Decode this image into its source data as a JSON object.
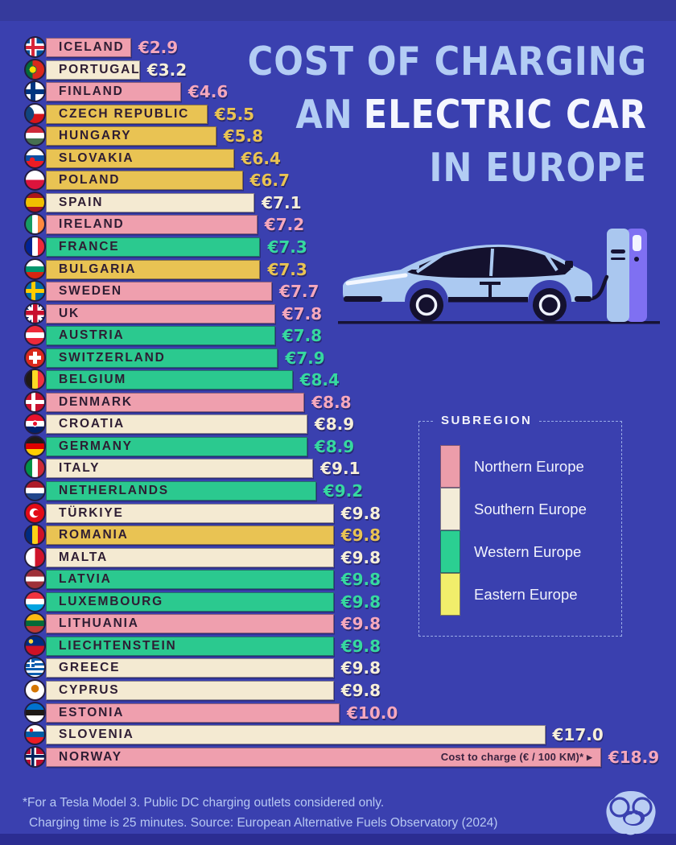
{
  "title": {
    "line1": "COST OF CHARGING",
    "line2_prefix": "AN",
    "line2_emphasis": "ELECTRIC CAR",
    "line3": "IN EUROPE"
  },
  "chart_data": {
    "type": "bar",
    "orientation": "horizontal",
    "title": "Cost of Charging an Electric Car in Europe",
    "unit": "EUR per 100 km",
    "value_label_prefix": "€",
    "axis_note": "Cost to charge (€ / 100 KM)* ▸",
    "x_max": 18.9,
    "rows": [
      {
        "country": "Iceland",
        "value": 2.9,
        "subregion": "Northern Europe",
        "flag": "iceland-flag-icon"
      },
      {
        "country": "Portugal",
        "value": 3.2,
        "subregion": "Southern Europe",
        "flag": "portugal-flag-icon"
      },
      {
        "country": "Finland",
        "value": 4.6,
        "subregion": "Northern Europe",
        "flag": "finland-flag-icon"
      },
      {
        "country": "Czech Republic",
        "value": 5.5,
        "subregion": "Eastern Europe",
        "flag": "czech-republic-flag-icon"
      },
      {
        "country": "Hungary",
        "value": 5.8,
        "subregion": "Eastern Europe",
        "flag": "hungary-flag-icon"
      },
      {
        "country": "Slovakia",
        "value": 6.4,
        "subregion": "Eastern Europe",
        "flag": "slovakia-flag-icon"
      },
      {
        "country": "Poland",
        "value": 6.7,
        "subregion": "Eastern Europe",
        "flag": "poland-flag-icon"
      },
      {
        "country": "Spain",
        "value": 7.1,
        "subregion": "Southern Europe",
        "flag": "spain-flag-icon"
      },
      {
        "country": "Ireland",
        "value": 7.2,
        "subregion": "Northern Europe",
        "flag": "ireland-flag-icon"
      },
      {
        "country": "France",
        "value": 7.3,
        "subregion": "Western Europe",
        "flag": "france-flag-icon"
      },
      {
        "country": "Bulgaria",
        "value": 7.3,
        "subregion": "Eastern Europe",
        "flag": "bulgaria-flag-icon"
      },
      {
        "country": "Sweden",
        "value": 7.7,
        "subregion": "Northern Europe",
        "flag": "sweden-flag-icon"
      },
      {
        "country": "UK",
        "value": 7.8,
        "subregion": "Northern Europe",
        "flag": "uk-flag-icon"
      },
      {
        "country": "Austria",
        "value": 7.8,
        "subregion": "Western Europe",
        "flag": "austria-flag-icon"
      },
      {
        "country": "Switzerland",
        "value": 7.9,
        "subregion": "Western Europe",
        "flag": "switzerland-flag-icon"
      },
      {
        "country": "Belgium",
        "value": 8.4,
        "subregion": "Western Europe",
        "flag": "belgium-flag-icon"
      },
      {
        "country": "Denmark",
        "value": 8.8,
        "subregion": "Northern Europe",
        "flag": "denmark-flag-icon"
      },
      {
        "country": "Croatia",
        "value": 8.9,
        "subregion": "Southern Europe",
        "flag": "croatia-flag-icon"
      },
      {
        "country": "Germany",
        "value": 8.9,
        "subregion": "Western Europe",
        "flag": "germany-flag-icon"
      },
      {
        "country": "Italy",
        "value": 9.1,
        "subregion": "Southern Europe",
        "flag": "italy-flag-icon"
      },
      {
        "country": "Netherlands",
        "value": 9.2,
        "subregion": "Western Europe",
        "flag": "netherlands-flag-icon"
      },
      {
        "country": "Türkiye",
        "value": 9.8,
        "subregion": "Southern Europe",
        "flag": "turkiye-flag-icon"
      },
      {
        "country": "Romania",
        "value": 9.8,
        "subregion": "Eastern Europe",
        "flag": "romania-flag-icon"
      },
      {
        "country": "Malta",
        "value": 9.8,
        "subregion": "Southern Europe",
        "flag": "malta-flag-icon"
      },
      {
        "country": "Latvia",
        "value": 9.8,
        "subregion": "Western Europe",
        "flag": "latvia-flag-icon"
      },
      {
        "country": "Luxembourg",
        "value": 9.8,
        "subregion": "Western Europe",
        "flag": "luxembourg-flag-icon"
      },
      {
        "country": "Lithuania",
        "value": 9.8,
        "subregion": "Northern Europe",
        "flag": "lithuania-flag-icon"
      },
      {
        "country": "Liechtenstein",
        "value": 9.8,
        "subregion": "Western Europe",
        "flag": "liechtenstein-flag-icon"
      },
      {
        "country": "Greece",
        "value": 9.8,
        "subregion": "Southern Europe",
        "flag": "greece-flag-icon"
      },
      {
        "country": "Cyprus",
        "value": 9.8,
        "subregion": "Southern Europe",
        "flag": "cyprus-flag-icon"
      },
      {
        "country": "Estonia",
        "value": 10.0,
        "subregion": "Northern Europe",
        "flag": "estonia-flag-icon"
      },
      {
        "country": "Slovenia",
        "value": 17.0,
        "subregion": "Southern Europe",
        "flag": "slovenia-flag-icon"
      },
      {
        "country": "Norway",
        "value": 18.9,
        "subregion": "Northern Europe",
        "flag": "norway-flag-icon"
      }
    ]
  },
  "legend": {
    "title": "SUBREGION",
    "items": [
      {
        "label": "Northern Europe",
        "color": "#ec9daa"
      },
      {
        "label": "Southern Europe",
        "color": "#f3ecd8"
      },
      {
        "label": "Western Europe",
        "color": "#2bcf92"
      },
      {
        "label": "Eastern Europe",
        "color": "#f1ee6b"
      }
    ]
  },
  "footnote": {
    "line1": "*For a Tesla Model 3. Public DC charging outlets considered only.",
    "line2": "Charging time is 25 minutes. Source: European Alternative Fuels Observatory (2024)"
  },
  "colors": {
    "background": "#3a40af",
    "title_blue": "#b3cdf4",
    "title_white": "#f5f7ff",
    "subregion_colors": {
      "Northern Europe": "#ef9fae",
      "Southern Europe": "#f4ead2",
      "Western Europe": "#2bc98f",
      "Eastern Europe": "#e9c353"
    },
    "value_text_colors": {
      "Northern Europe": "#f5a8bd",
      "Southern Europe": "#f6efd9",
      "Western Europe": "#36d9a0",
      "Eastern Europe": "#e9c353"
    }
  }
}
